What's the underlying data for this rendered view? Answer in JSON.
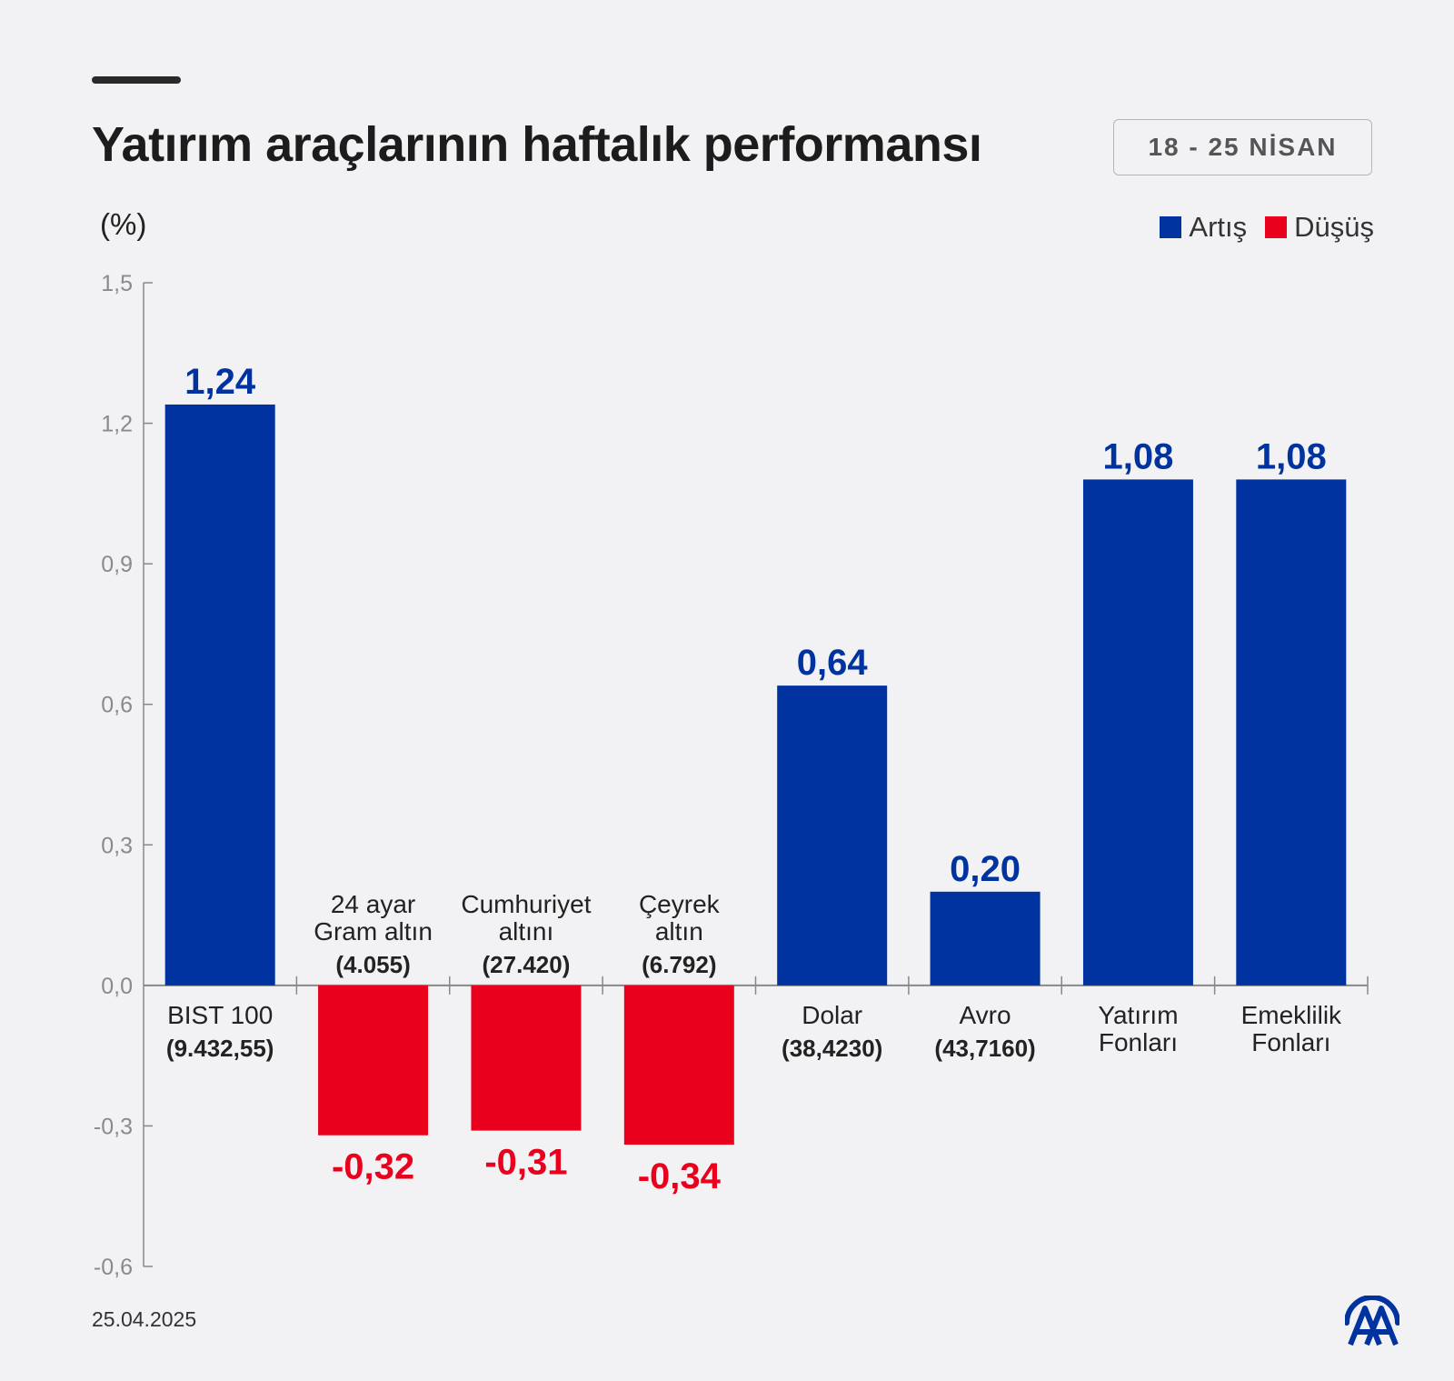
{
  "header": {
    "title": "Yatırım araçlarının haftalık performansı",
    "date_range": "18 - 25 NİSAN",
    "unit": "(%)"
  },
  "legend": [
    {
      "label": "Artış",
      "color": "#0033a0"
    },
    {
      "label": "Düşüş",
      "color": "#e8001c"
    }
  ],
  "footer": {
    "date": "25.04.2025",
    "logo_icon": "aa-logo-icon"
  },
  "colors": {
    "increase": "#0033a0",
    "decrease": "#e8001c",
    "axis": "#888888",
    "tick_text": "#8a8a8a"
  },
  "chart_data": {
    "type": "bar",
    "ylim": [
      -0.6,
      1.5
    ],
    "yticks": [
      "1,5",
      "1,2",
      "0,9",
      "0,6",
      "0,3",
      "0,0",
      "-0,3",
      "-0,6"
    ],
    "ytick_values": [
      1.5,
      1.2,
      0.9,
      0.6,
      0.3,
      0.0,
      -0.3,
      -0.6
    ],
    "ylabel": "(%)",
    "grid": false,
    "legend_position": "top-right",
    "categories": [
      {
        "lines": [
          "BIST 100"
        ],
        "sub": "(9.432,55)"
      },
      {
        "lines": [
          "24 ayar",
          "Gram altın"
        ],
        "sub": "(4.055)"
      },
      {
        "lines": [
          "Cumhuriyet",
          "altını"
        ],
        "sub": "(27.420)"
      },
      {
        "lines": [
          "Çeyrek",
          "altın"
        ],
        "sub": "(6.792)"
      },
      {
        "lines": [
          "Dolar"
        ],
        "sub": "(38,4230)"
      },
      {
        "lines": [
          "Avro"
        ],
        "sub": "(43,7160)"
      },
      {
        "lines": [
          "Yatırım",
          "Fonları"
        ],
        "sub": ""
      },
      {
        "lines": [
          "Emeklilik",
          "Fonları"
        ],
        "sub": ""
      }
    ],
    "values": [
      1.24,
      -0.32,
      -0.31,
      -0.34,
      0.64,
      0.2,
      1.08,
      1.08
    ],
    "value_labels": [
      "1,24",
      "-0,32",
      "-0,31",
      "-0,34",
      "0,64",
      "0,20",
      "1,08",
      "1,08"
    ]
  }
}
